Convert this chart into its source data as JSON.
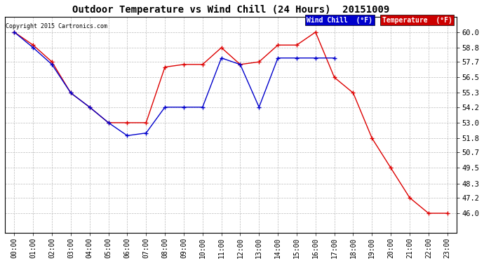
{
  "title": "Outdoor Temperature vs Wind Chill (24 Hours)  20151009",
  "copyright": "Copyright 2015 Cartronics.com",
  "background_color": "#ffffff",
  "plot_bg_color": "#ffffff",
  "grid_color": "#bbbbbb",
  "x_labels": [
    "00:00",
    "01:00",
    "02:00",
    "03:00",
    "04:00",
    "05:00",
    "06:00",
    "07:00",
    "08:00",
    "09:00",
    "10:00",
    "11:00",
    "12:00",
    "13:00",
    "14:00",
    "15:00",
    "16:00",
    "17:00",
    "18:00",
    "19:00",
    "20:00",
    "21:00",
    "22:00",
    "23:00"
  ],
  "y_ticks": [
    46.0,
    47.2,
    48.3,
    49.5,
    50.7,
    51.8,
    53.0,
    54.2,
    55.3,
    56.5,
    57.7,
    58.8,
    60.0
  ],
  "temperature": [
    60.0,
    59.0,
    57.7,
    55.3,
    54.2,
    53.0,
    53.0,
    53.0,
    57.3,
    57.5,
    57.5,
    58.8,
    57.5,
    57.7,
    59.0,
    59.0,
    60.0,
    56.5,
    55.3,
    51.8,
    49.5,
    47.2,
    46.0,
    46.0
  ],
  "wind_chill": [
    60.0,
    58.8,
    57.5,
    55.3,
    54.2,
    53.0,
    52.0,
    52.2,
    54.2,
    54.2,
    54.2,
    58.0,
    57.5,
    54.2,
    58.0,
    58.0,
    58.0,
    58.0,
    null,
    null,
    null,
    null,
    null,
    null
  ],
  "temp_color": "#dd0000",
  "wind_chill_color": "#0000cc",
  "legend_wind_bg": "#0000cc",
  "legend_temp_bg": "#cc0000",
  "legend_wind_text": "Wind Chill  (°F)",
  "legend_temp_text": "Temperature  (°F)"
}
